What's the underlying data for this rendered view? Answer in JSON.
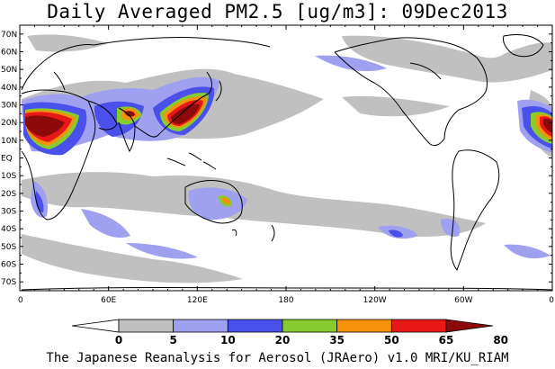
{
  "title": "Daily Averaged PM2.5 [ug/m3]: 09Dec2013",
  "credit": "The Japanese Reanalysis for Aerosol (JRAero) v1.0 MRI/KU_RIAM",
  "map": {
    "lon_range": [
      0,
      360
    ],
    "lat_range": [
      -75,
      75
    ],
    "lon_ticks": [
      {
        "lon": 0,
        "label": "0"
      },
      {
        "lon": 60,
        "label": "60E"
      },
      {
        "lon": 120,
        "label": "120E"
      },
      {
        "lon": 180,
        "label": "180"
      },
      {
        "lon": 240,
        "label": "120W"
      },
      {
        "lon": 300,
        "label": "60W"
      },
      {
        "lon": 360,
        "label": "0"
      }
    ],
    "lat_ticks": [
      {
        "lat": 70,
        "label": "70N"
      },
      {
        "lat": 60,
        "label": "60N"
      },
      {
        "lat": 50,
        "label": "50N"
      },
      {
        "lat": 40,
        "label": "40N"
      },
      {
        "lat": 30,
        "label": "30N"
      },
      {
        "lat": 20,
        "label": "20N"
      },
      {
        "lat": 10,
        "label": "10N"
      },
      {
        "lat": 0,
        "label": "EQ"
      },
      {
        "lat": -10,
        "label": "10S"
      },
      {
        "lat": -20,
        "label": "20S"
      },
      {
        "lat": -30,
        "label": "30S"
      },
      {
        "lat": -40,
        "label": "40S"
      },
      {
        "lat": -50,
        "label": "50S"
      },
      {
        "lat": -60,
        "label": "60S"
      },
      {
        "lat": -70,
        "label": "70S"
      }
    ]
  },
  "colorbar": {
    "bins": [
      {
        "color": "#ffffff"
      },
      {
        "color": "#c0c0c0"
      },
      {
        "color": "#a0a0f0"
      },
      {
        "color": "#4a50ec"
      },
      {
        "color": "#86cc2e"
      },
      {
        "color": "#f5910a"
      },
      {
        "color": "#e81818"
      },
      {
        "color": "#8c0a0a"
      }
    ],
    "labels": [
      "0",
      "5",
      "10",
      "20",
      "35",
      "50",
      "65",
      "80"
    ]
  }
}
